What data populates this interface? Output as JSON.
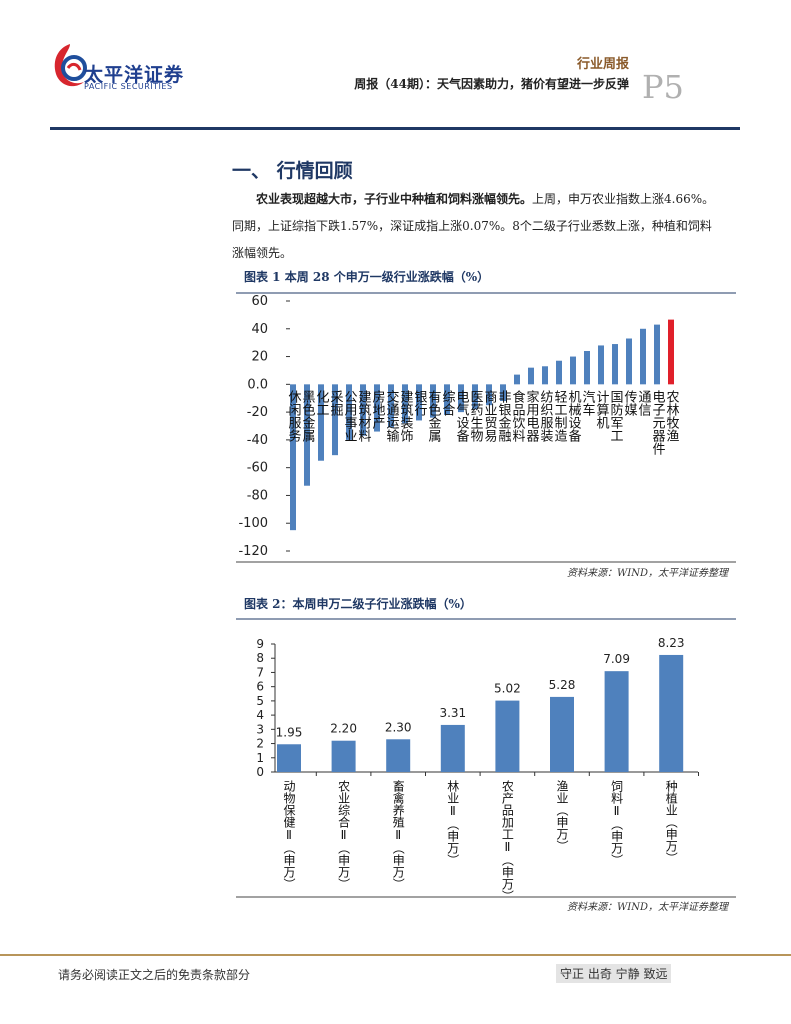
{
  "header": {
    "logo_cn": "太平洋证券",
    "logo_en": "PACIFIC SECURITIES",
    "category": "行业周报",
    "report_title": "周报（44期）：天气因素助力，猪价有望进一步反弹",
    "page": "P5"
  },
  "section_title": "一、 行情回顾",
  "paragraph": {
    "lead": "农业表现超越大市，子行业中种植和饲料涨幅领先。",
    "body": "上周，申万农业指数上涨4.66%。同期，上证综指下跌1.57%，深证成指上涨0.07%。8个二级子行业悉数上涨，种植和饲料涨幅领先。"
  },
  "chart_data": [
    {
      "type": "bar",
      "title": "图表 1 本周 28 个申万一级行业涨跌幅（%）",
      "source": "资料来源：WIND，太平洋证券整理",
      "categories": [
        "休闲服务",
        "黑色金属",
        "化工",
        "采掘",
        "公用事业",
        "建筑材料",
        "房地产",
        "交通运输",
        "建筑装饰",
        "银行",
        "有色金属",
        "综合",
        "电气设备",
        "医药生物",
        "商业贸易",
        "非银金融",
        "食品饮料",
        "家用电器",
        "纺织服装",
        "轻工制造",
        "机械设备",
        "汽车",
        "计算机",
        "国防军工",
        "传媒",
        "通信",
        "电子元器件",
        "农林牧渔"
      ],
      "values": [
        -105,
        -73,
        -55,
        -51,
        -40,
        -37,
        -34,
        -31,
        -28,
        -26,
        -24,
        -22,
        -20,
        -18,
        -15,
        -12,
        7,
        12,
        13,
        17,
        20,
        24,
        28,
        29,
        33,
        40,
        43,
        46.6
      ],
      "colors": [
        "#4f81bd",
        "#4f81bd",
        "#4f81bd",
        "#4f81bd",
        "#4f81bd",
        "#4f81bd",
        "#4f81bd",
        "#4f81bd",
        "#4f81bd",
        "#4f81bd",
        "#4f81bd",
        "#4f81bd",
        "#4f81bd",
        "#4f81bd",
        "#4f81bd",
        "#4f81bd",
        "#4f81bd",
        "#4f81bd",
        "#4f81bd",
        "#4f81bd",
        "#4f81bd",
        "#4f81bd",
        "#4f81bd",
        "#4f81bd",
        "#4f81bd",
        "#4f81bd",
        "#4f81bd",
        "#e0202a"
      ],
      "ylim": [
        -120,
        60
      ],
      "yticks": [
        60,
        40,
        20,
        {
          "value": 0,
          "label": "0.0"
        },
        -20,
        -40,
        -60,
        -80,
        -100,
        -120
      ],
      "grid": false
    },
    {
      "type": "bar",
      "title": "图表 2：本周申万二级子行业涨跌幅（%）",
      "source": "资料来源：WIND，太平洋证券整理",
      "categories": [
        "动物保健Ⅱ（申万）",
        "农业综合Ⅱ（申万）",
        "畜禽养殖Ⅱ（申万）",
        "林业Ⅱ（申万）",
        "农产品加工Ⅱ（申万）",
        "渔业（申万）",
        "饲料Ⅱ（申万）",
        "种植业（申万）"
      ],
      "values": [
        1.95,
        2.2,
        2.3,
        3.31,
        5.02,
        5.28,
        7.09,
        8.23
      ],
      "value_labels": [
        "1.95",
        "2.20",
        "2.30",
        "3.31",
        "5.02",
        "5.28",
        "7.09",
        "8.23"
      ],
      "color": "#4f81bd",
      "ylim": [
        0,
        9
      ],
      "yticks": [
        0,
        1,
        2,
        3,
        4,
        5,
        6,
        7,
        8,
        9
      ],
      "grid": false
    }
  ],
  "footer": {
    "disclaimer": "请务必阅读正文之后的免责条款部分",
    "motto": "守正 出奇 宁静 致远"
  }
}
